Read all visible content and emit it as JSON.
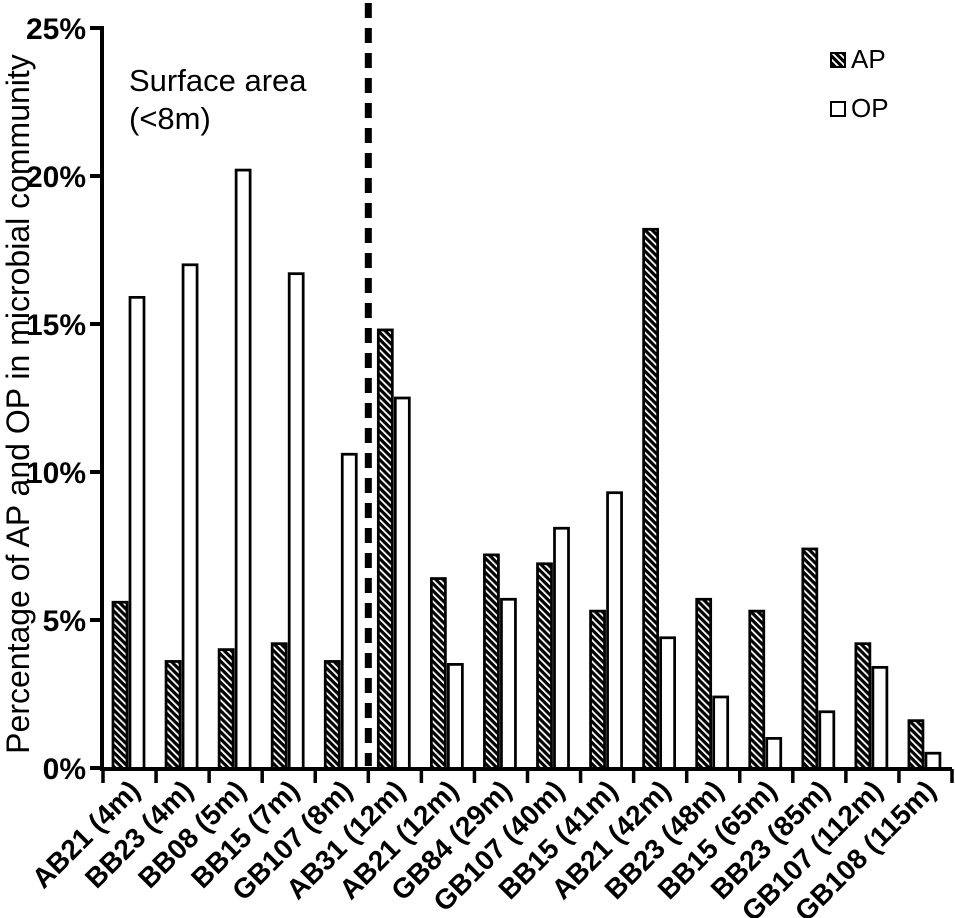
{
  "figure": {
    "background": "#ffffff",
    "ink_color": "#000000"
  },
  "chart_data": {
    "type": "bar",
    "title": "",
    "xlabel": "",
    "ylabel": "Percentage of AP and OP in microbial community",
    "ylim": [
      0,
      25
    ],
    "ytick_values": [
      0,
      5,
      10,
      15,
      20,
      25
    ],
    "ytick_labels": [
      "0%",
      "5%",
      "10%",
      "15%",
      "20%",
      "25%"
    ],
    "grid": false,
    "categories": [
      "AB21 (4m)",
      "BB23 (4m)",
      "BB08 (5m)",
      "BB15 (7m)",
      "GB107 (8m)",
      "AB31 (12m)",
      "AB21 (12m)",
      "GB84 (29m)",
      "GB107 (40m)",
      "BB15 (41m)",
      "AB21 (42m)",
      "BB23 (48m)",
      "BB15 (65m)",
      "BB23 (85m)",
      "GB107 (112m)",
      "GB108 (115m)"
    ],
    "series": [
      {
        "name": "AP",
        "style": "hatched",
        "values": [
          5.6,
          3.6,
          4.0,
          4.2,
          3.6,
          14.8,
          6.4,
          7.2,
          6.9,
          5.3,
          18.2,
          5.7,
          5.3,
          7.4,
          4.2,
          1.6
        ]
      },
      {
        "name": "OP",
        "style": "open",
        "values": [
          15.9,
          17.0,
          20.2,
          16.7,
          10.6,
          12.5,
          3.5,
          5.7,
          8.1,
          9.3,
          4.4,
          2.4,
          1.0,
          1.9,
          3.4,
          0.5
        ]
      }
    ],
    "annotation": {
      "line1": "Surface area",
      "line2": "(<8m)"
    },
    "divider": {
      "style": "dashed-vertical",
      "between_categories": [
        "GB107 (8m)",
        "AB31 (12m)"
      ]
    },
    "legend": {
      "position": "top-right",
      "entries": [
        "AP",
        "OP"
      ]
    }
  }
}
